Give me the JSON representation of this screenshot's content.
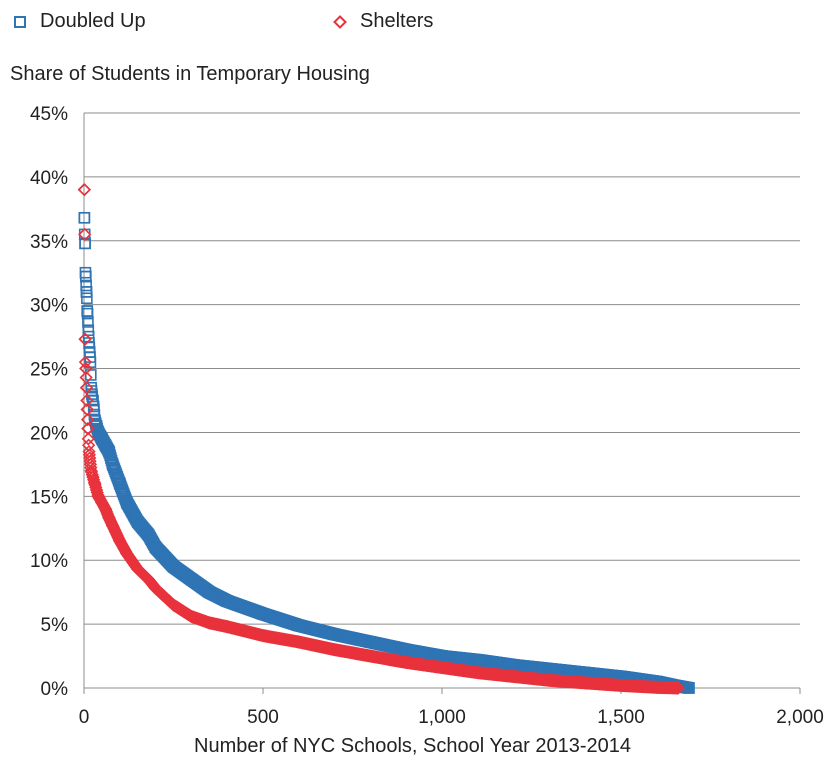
{
  "legend": {
    "doubled_up": "Doubled Up",
    "shelters": "Shelters"
  },
  "colors": {
    "doubled_up": "#2f75b5",
    "shelters": "#e8323c",
    "grid": "#8c8c8c"
  },
  "chart_data": {
    "type": "scatter",
    "title": "Share of Students in Temporary Housing",
    "xlabel": "Number of NYC Schools, School Year 2013-2014",
    "ylabel": "",
    "xlim": [
      0,
      2000
    ],
    "ylim": [
      0,
      45
    ],
    "x_ticks": [
      0,
      500,
      1000,
      1500,
      2000
    ],
    "x_tick_labels": [
      "0",
      "500",
      "1,000",
      "1,500",
      "2,000"
    ],
    "y_ticks": [
      0,
      5,
      10,
      15,
      20,
      25,
      30,
      35,
      40,
      45
    ],
    "y_tick_labels": [
      "0%",
      "5%",
      "10%",
      "15%",
      "20%",
      "25%",
      "30%",
      "35%",
      "40%",
      "45%"
    ],
    "grid": "horizontal",
    "legend_position": "top-left",
    "series": [
      {
        "name": "Doubled Up",
        "marker": "square",
        "points": [
          [
            1,
            36.8
          ],
          [
            2,
            35.5
          ],
          [
            3,
            34.8
          ],
          [
            4,
            32.5
          ],
          [
            5,
            32.2
          ],
          [
            6,
            31.5
          ],
          [
            7,
            31.0
          ],
          [
            8,
            30.5
          ],
          [
            9,
            29.5
          ],
          [
            10,
            29.3
          ],
          [
            12,
            28.0
          ],
          [
            14,
            27.0
          ],
          [
            16,
            26.3
          ],
          [
            18,
            25.5
          ],
          [
            20,
            23.5
          ],
          [
            22,
            23.0
          ],
          [
            25,
            22.5
          ],
          [
            28,
            21.8
          ],
          [
            30,
            21.0
          ],
          [
            35,
            20.5
          ],
          [
            40,
            20.0
          ],
          [
            50,
            19.5
          ],
          [
            60,
            19.0
          ],
          [
            70,
            18.5
          ],
          [
            80,
            17.5
          ],
          [
            100,
            16.0
          ],
          [
            120,
            14.5
          ],
          [
            150,
            13.0
          ],
          [
            180,
            12.0
          ],
          [
            200,
            11.0
          ],
          [
            250,
            9.5
          ],
          [
            300,
            8.5
          ],
          [
            350,
            7.5
          ],
          [
            400,
            6.8
          ],
          [
            500,
            5.8
          ],
          [
            600,
            4.9
          ],
          [
            700,
            4.2
          ],
          [
            800,
            3.6
          ],
          [
            900,
            3.0
          ],
          [
            1000,
            2.5
          ],
          [
            1100,
            2.2
          ],
          [
            1200,
            1.8
          ],
          [
            1300,
            1.5
          ],
          [
            1400,
            1.2
          ],
          [
            1500,
            0.9
          ],
          [
            1600,
            0.5
          ],
          [
            1650,
            0.2
          ],
          [
            1690,
            0.0
          ]
        ]
      },
      {
        "name": "Shelters",
        "marker": "diamond",
        "points": [
          [
            1,
            39.0
          ],
          [
            2,
            35.5
          ],
          [
            3,
            27.3
          ],
          [
            4,
            25.5
          ],
          [
            5,
            25.0
          ],
          [
            6,
            24.3
          ],
          [
            7,
            23.5
          ],
          [
            8,
            22.5
          ],
          [
            9,
            21.8
          ],
          [
            10,
            21.0
          ],
          [
            11,
            20.3
          ],
          [
            12,
            19.5
          ],
          [
            14,
            18.5
          ],
          [
            16,
            18.0
          ],
          [
            18,
            17.5
          ],
          [
            20,
            17.0
          ],
          [
            25,
            16.5
          ],
          [
            30,
            16.0
          ],
          [
            35,
            15.5
          ],
          [
            40,
            15.0
          ],
          [
            50,
            14.5
          ],
          [
            60,
            14.0
          ],
          [
            70,
            13.3
          ],
          [
            80,
            12.7
          ],
          [
            100,
            11.5
          ],
          [
            120,
            10.5
          ],
          [
            150,
            9.3
          ],
          [
            180,
            8.5
          ],
          [
            200,
            7.8
          ],
          [
            250,
            6.5
          ],
          [
            300,
            5.6
          ],
          [
            350,
            5.1
          ],
          [
            400,
            4.8
          ],
          [
            500,
            4.1
          ],
          [
            600,
            3.6
          ],
          [
            700,
            3.0
          ],
          [
            800,
            2.5
          ],
          [
            900,
            2.0
          ],
          [
            1000,
            1.6
          ],
          [
            1100,
            1.2
          ],
          [
            1200,
            0.9
          ],
          [
            1300,
            0.6
          ],
          [
            1400,
            0.4
          ],
          [
            1500,
            0.2
          ],
          [
            1600,
            0.05
          ],
          [
            1660,
            0.0
          ]
        ]
      }
    ]
  }
}
